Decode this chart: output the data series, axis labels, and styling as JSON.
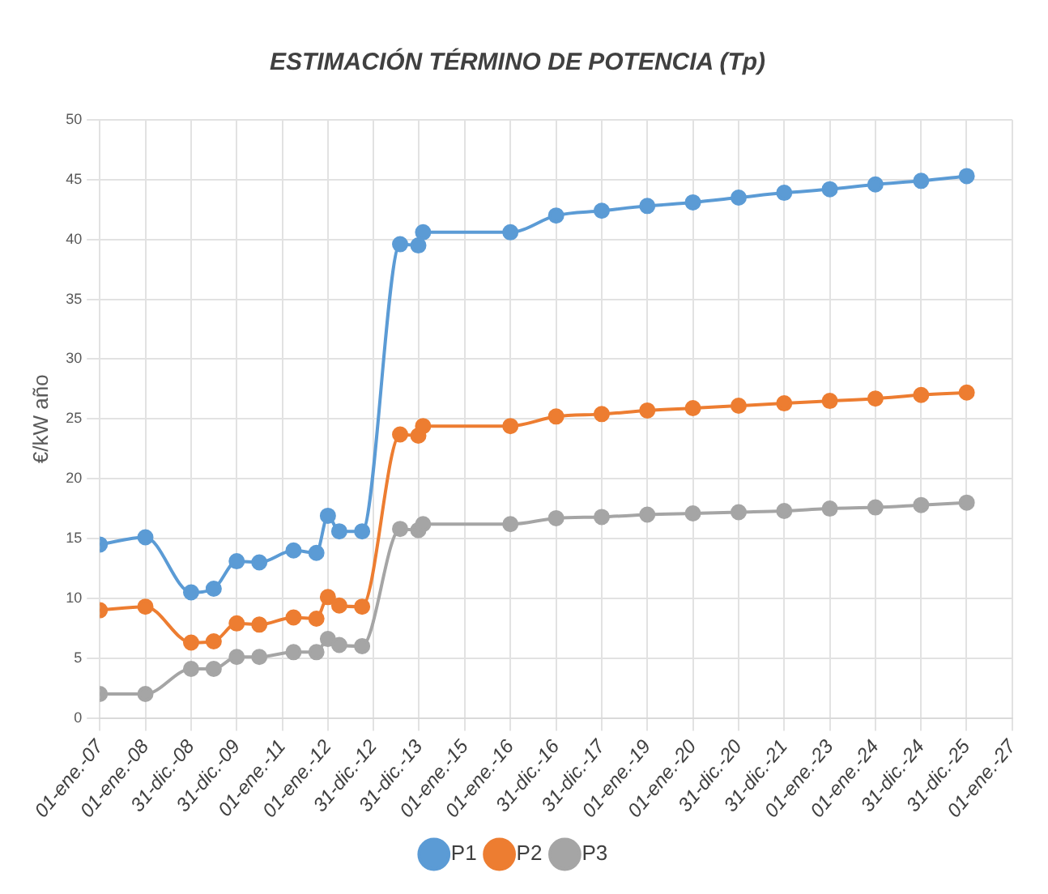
{
  "chart_data": {
    "type": "line",
    "title": "ESTIMACIÓN TÉRMINO DE POTENCIA (Tp)",
    "ylabel": "€/kW año",
    "x": [
      "2007-01-01",
      "2008-01-01",
      "2009-01-01",
      "2009-07-01",
      "2010-01-01",
      "2010-07-01",
      "2011-04-01",
      "2011-10-01",
      "2012-01-01",
      "2012-04-01",
      "2012-10-01",
      "2013-08-01",
      "2013-12-25",
      "2014-02-01",
      "2016-01-01",
      "2017-01-01",
      "2018-01-01",
      "2019-01-01",
      "2020-01-01",
      "2021-01-01",
      "2022-01-01",
      "2023-01-01",
      "2024-01-01",
      "2025-01-01",
      "2026-01-01"
    ],
    "series": [
      {
        "name": "P1",
        "color": "#5b9bd5",
        "values": [
          14.5,
          15.1,
          10.5,
          10.8,
          13.1,
          13.0,
          14.0,
          13.8,
          16.9,
          15.6,
          15.6,
          39.6,
          39.5,
          40.6,
          40.6,
          42.0,
          42.4,
          42.8,
          43.1,
          43.5,
          43.9,
          44.2,
          44.6,
          44.9,
          45.3
        ]
      },
      {
        "name": "P2",
        "color": "#ed7d31",
        "values": [
          9.0,
          9.3,
          6.3,
          6.4,
          7.9,
          7.8,
          8.4,
          8.3,
          10.1,
          9.4,
          9.3,
          23.7,
          23.6,
          24.4,
          24.4,
          25.2,
          25.4,
          25.7,
          25.9,
          26.1,
          26.3,
          26.5,
          26.7,
          27.0,
          27.2
        ]
      },
      {
        "name": "P3",
        "color": "#a5a5a5",
        "values": [
          2.0,
          2.0,
          4.1,
          4.1,
          5.1,
          5.1,
          5.5,
          5.5,
          6.6,
          6.1,
          6.0,
          15.8,
          15.7,
          16.2,
          16.2,
          16.7,
          16.8,
          17.0,
          17.1,
          17.2,
          17.3,
          17.5,
          17.6,
          17.8,
          18.0
        ]
      }
    ],
    "xlim": [
      "2007-01-01",
      "2027-01-01"
    ],
    "xticks": [
      {
        "value": "2007-01-01",
        "label": "01-ene.-07"
      },
      {
        "value": "2008-01-01",
        "label": "01-ene.-08"
      },
      {
        "value": "2008-12-31",
        "label": "31-dic.-08"
      },
      {
        "value": "2009-12-31",
        "label": "31-dic.-09"
      },
      {
        "value": "2011-01-01",
        "label": "01-ene.-11"
      },
      {
        "value": "2012-01-01",
        "label": "01-ene.-12"
      },
      {
        "value": "2012-12-31",
        "label": "31-dic.-12"
      },
      {
        "value": "2013-12-31",
        "label": "31-dic.-13"
      },
      {
        "value": "2015-01-01",
        "label": "01-ene.-15"
      },
      {
        "value": "2016-01-01",
        "label": "01-ene.-16"
      },
      {
        "value": "2016-12-31",
        "label": "31-dic.-16"
      },
      {
        "value": "2017-12-31",
        "label": "31-dic.-17"
      },
      {
        "value": "2019-01-01",
        "label": "01-ene.-19"
      },
      {
        "value": "2020-01-01",
        "label": "01-ene.-20"
      },
      {
        "value": "2020-12-31",
        "label": "31-dic.-20"
      },
      {
        "value": "2021-12-31",
        "label": "31-dic.-21"
      },
      {
        "value": "2023-01-01",
        "label": "01-ene.-23"
      },
      {
        "value": "2024-01-01",
        "label": "01-ene.-24"
      },
      {
        "value": "2024-12-31",
        "label": "31-dic.-24"
      },
      {
        "value": "2025-12-31",
        "label": "31-dic.-25"
      },
      {
        "value": "2027-01-01",
        "label": "01-ene.-27"
      }
    ],
    "ylim": [
      0,
      50
    ],
    "yticks": [
      0,
      5,
      10,
      15,
      20,
      25,
      30,
      35,
      40,
      45,
      50
    ],
    "grid": true,
    "legend": "bottom",
    "marker": "circle",
    "line_style": "solid"
  }
}
